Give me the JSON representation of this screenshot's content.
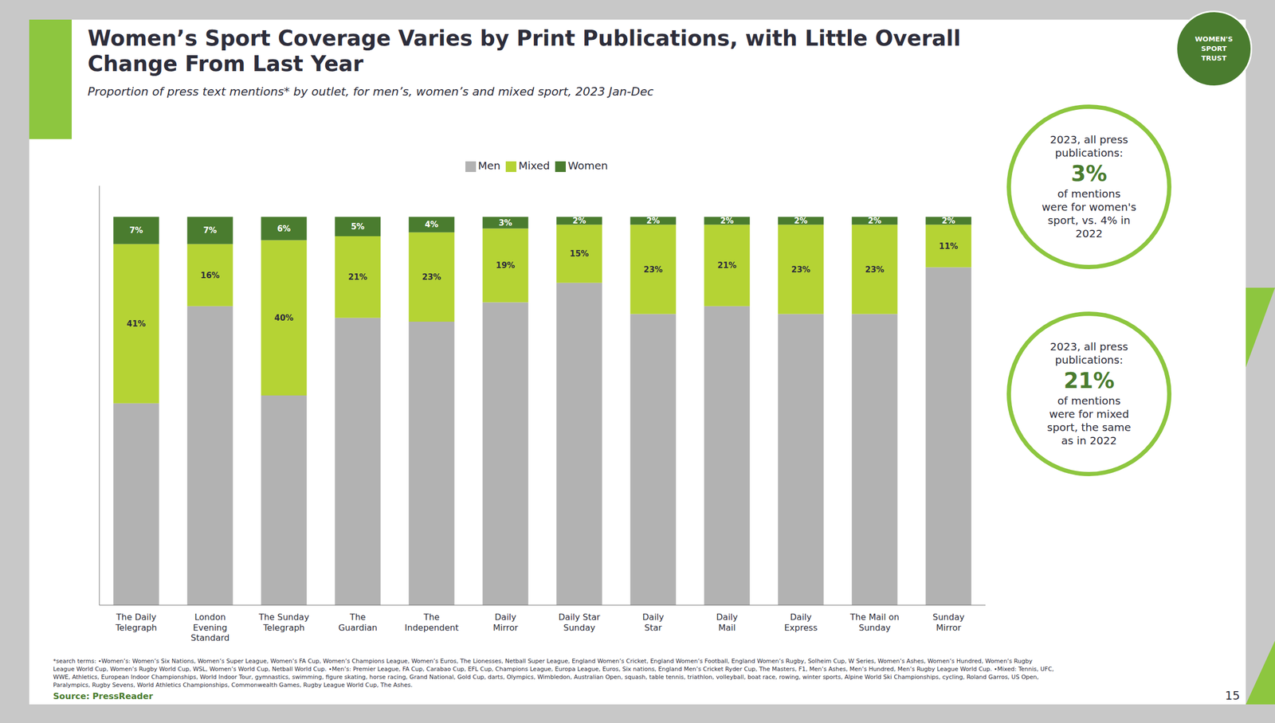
{
  "chart_data": {
    "type": "bar",
    "stacked": true,
    "title": "Women’s Sport Coverage Varies by Print Publications, with Little Overall\nChange From Last Year",
    "subtitle": "Proportion of press text mentions* by outlet, for men’s, women’s and mixed sport, 2023 Jan-Dec",
    "categories": [
      "The Daily\nTelegraph",
      "London\nEvening\nStandard",
      "The Sunday\nTelegraph",
      "The\nGuardian",
      "The\nIndependent",
      "Daily\nMirror",
      "Daily Star\nSunday",
      "Daily\nStar",
      "Daily\nMail",
      "Daily\nExpress",
      "The Mail on\nSunday",
      "Sunday\nMirror"
    ],
    "series": [
      {
        "name": "Men",
        "color": "#b2b2b2",
        "values": [
          52,
          77,
          54,
          74,
          73,
          78,
          83,
          75,
          77,
          75,
          75,
          87
        ]
      },
      {
        "name": "Mixed",
        "color": "#b5d334",
        "values": [
          41,
          16,
          40,
          21,
          23,
          19,
          15,
          23,
          21,
          23,
          23,
          11
        ],
        "data_labels": true,
        "value_labels": [
          "41%",
          "16%",
          "40%",
          "21%",
          "23%",
          "19%",
          "15%",
          "23%",
          "21%",
          "23%",
          "23%",
          "11%"
        ]
      },
      {
        "name": "Women",
        "color": "#4a7c2f",
        "values": [
          7,
          7,
          6,
          5,
          4,
          3,
          2,
          2,
          2,
          2,
          2,
          2
        ],
        "data_labels": true,
        "value_labels": [
          "7%",
          "7%",
          "6%",
          "5%",
          "4%",
          "3%",
          "2%",
          "2%",
          "2%",
          "2%",
          "2%",
          "2%"
        ]
      }
    ],
    "ylim": [
      0,
      108
    ],
    "yticks": [],
    "tick_labels": "x",
    "grid": false,
    "legend": "top",
    "annotations": [
      "2023, all press\npublications:\n3%\nof mentions\nwere for women's\nsport, vs. 4% in\n2022",
      "2023, all press\npublications:\n21%\nof mentions\nwere for mixed\nsport, the same\nas in 2022"
    ],
    "logo": "WOMEN'S\nSPORT\nTRUST",
    "footnote": "*search terms: •Women’s: Women’s Six Nations, Women’s Super League, Women’s FA Cup, Women’s Champions League, Women’s Euros, The Lionesses, Netball Super League, England Women’s Cricket, England Women’s Football, England Women’s Rugby, Solheim Cup, W Series, Women’s Ashes, Women’s Hundred, Women’s Rugby\nLeague World Cup, Women’s Rugby World Cup, WSL, Women’s World Cup, Netball World Cup. •Men’s: Premier League, FA Cup, Carabao Cup, EFL Cup, Champions League, Europa League, Euros, Six nations, England Men’s Cricket Ryder Cup, The Masters, F1, Men’s Ashes, Men’s Hundred, Men’s Rugby League World Cup. •Mixed: Tennis, UFC,\nWWE, Athletics, European Indoor Championships, World Indoor Tour, gymnastics, swimming, figure skating, horse racing, Grand National, Gold Cup, darts, Olympics, Wimbledon, Australian Open, squash, table tennis, triathlon, volleyball, boat race, rowing, winter sports, Alpine World Ski Championships, cycling, Roland Garros, US Open,\nParalympics, Rugby Sevens, World Athletics Championships, Commonwealth Games, Rugby League World Cup, The Ashes.",
    "source": "Source: PressReader",
    "page_number": "15"
  }
}
